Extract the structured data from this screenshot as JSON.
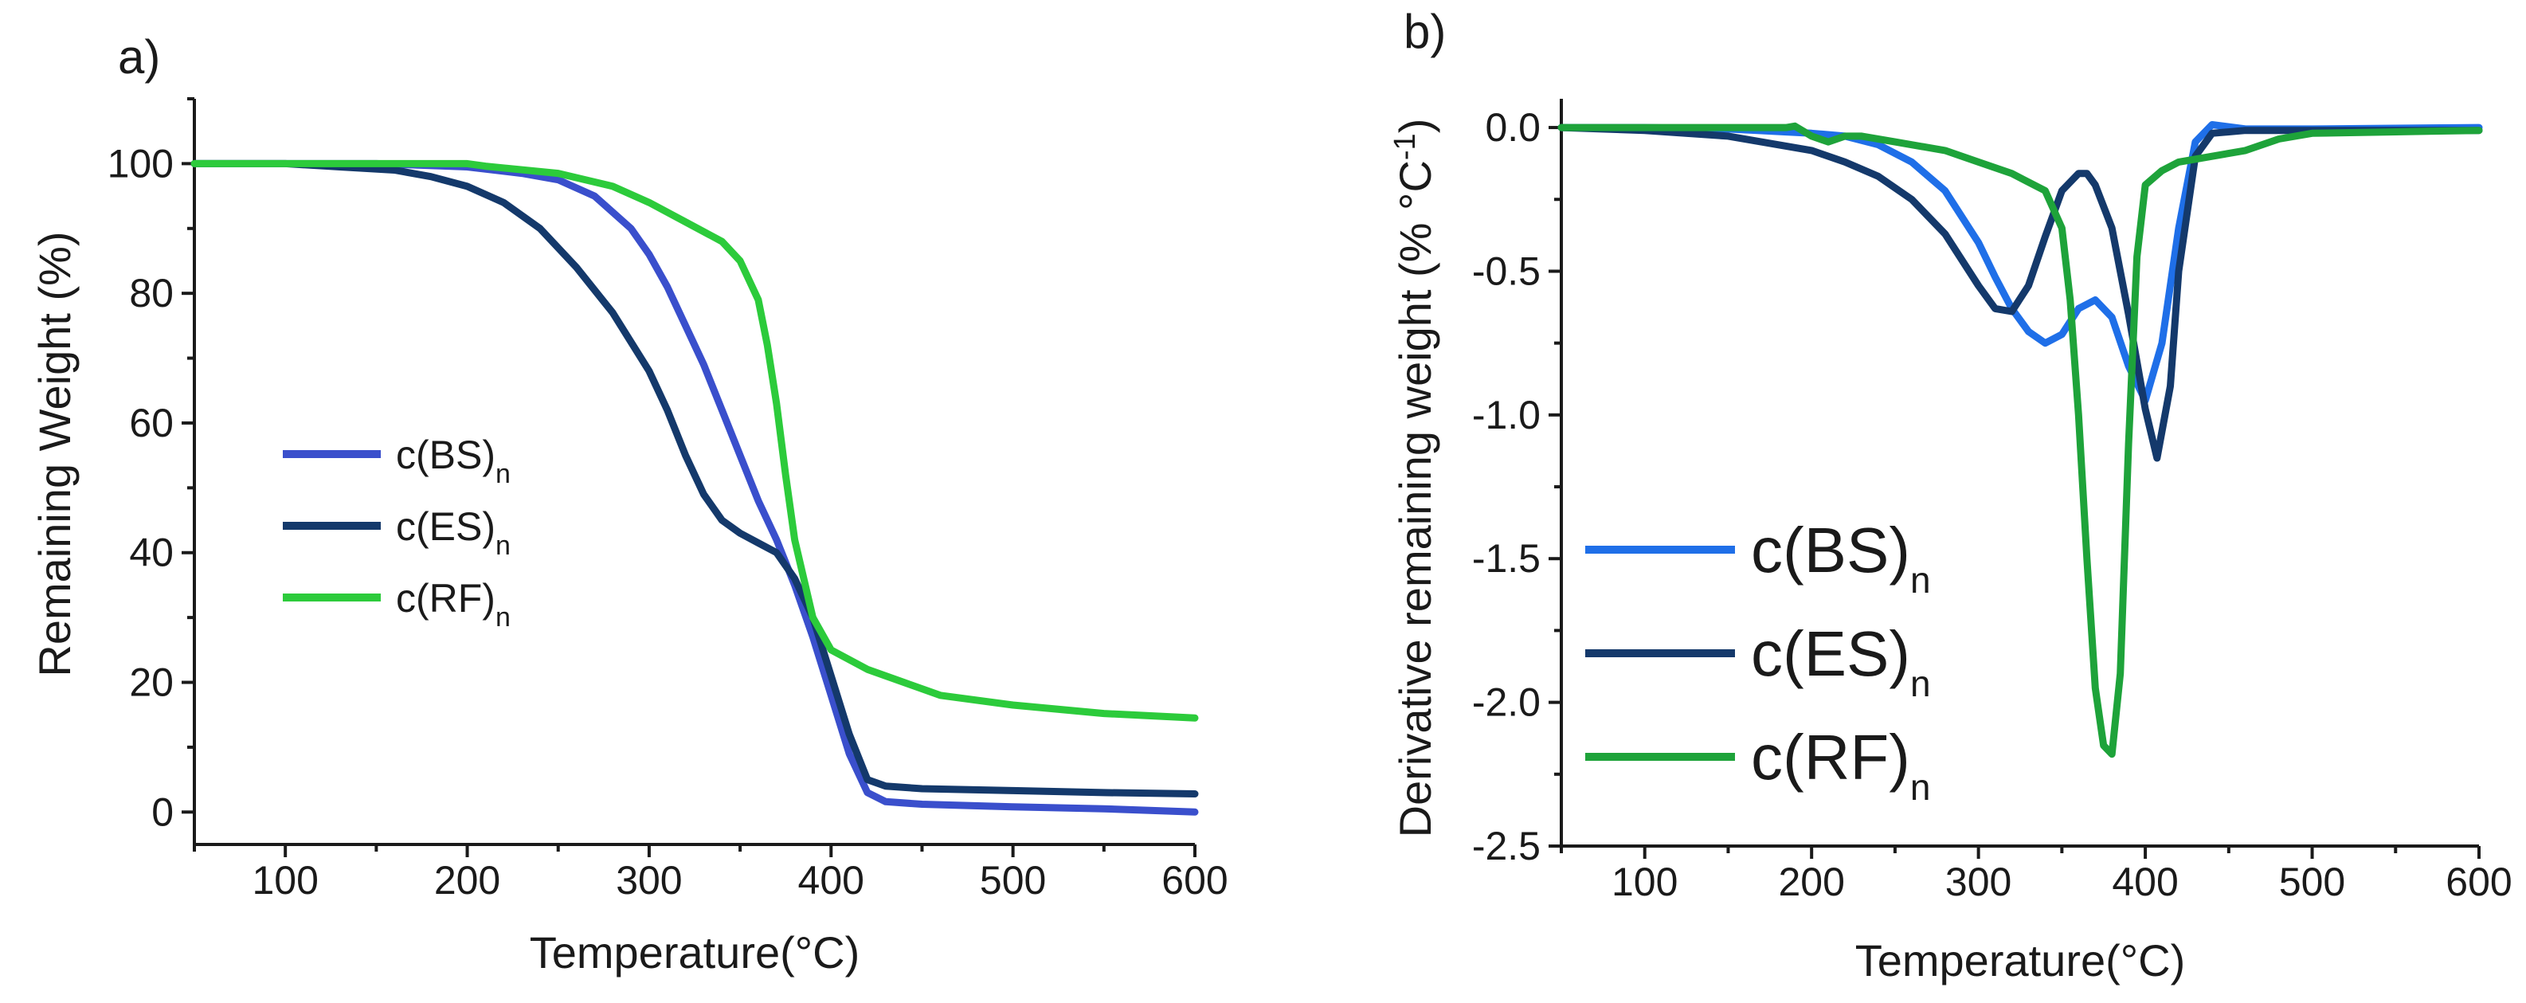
{
  "chart_data": [
    {
      "panel_label": "a)",
      "type": "line",
      "xlabel": "Temperature(°C)",
      "ylabel": "Remaining Weight (%)",
      "xlim": [
        50,
        600
      ],
      "ylim": [
        -5,
        110
      ],
      "xticks": [
        100,
        200,
        300,
        400,
        500,
        600
      ],
      "yticks": [
        0,
        20,
        40,
        60,
        80,
        100
      ],
      "grid": false,
      "legend_position": "middle-left",
      "series": [
        {
          "name": "c(BS)",
          "subscript": "n",
          "color": "#3a4fcc",
          "x": [
            50,
            100,
            150,
            200,
            230,
            250,
            270,
            290,
            300,
            310,
            320,
            330,
            340,
            350,
            360,
            370,
            380,
            390,
            400,
            410,
            420,
            430,
            450,
            500,
            550,
            600
          ],
          "y": [
            100,
            100,
            100,
            99.5,
            98.5,
            97.5,
            95,
            90,
            86,
            81,
            75,
            69,
            62,
            55,
            48,
            42,
            35,
            27,
            18,
            9,
            3,
            1.6,
            1.2,
            0.8,
            0.5,
            0
          ]
        },
        {
          "name": "c(ES)",
          "subscript": "n",
          "color": "#14396b",
          "x": [
            50,
            100,
            130,
            160,
            180,
            200,
            220,
            240,
            260,
            280,
            300,
            310,
            320,
            330,
            340,
            350,
            360,
            370,
            380,
            390,
            400,
            410,
            420,
            430,
            450,
            500,
            550,
            600
          ],
          "y": [
            100,
            100,
            99.5,
            99,
            98,
            96.5,
            94,
            90,
            84,
            77,
            68,
            62,
            55,
            49,
            45,
            43,
            41.5,
            40,
            36,
            30,
            21,
            12,
            5,
            4,
            3.6,
            3.3,
            3,
            2.8
          ]
        },
        {
          "name": "c(RF)",
          "subscript": "n",
          "color": "#2ccb3b",
          "x": [
            50,
            100,
            150,
            200,
            210,
            250,
            280,
            300,
            320,
            340,
            350,
            360,
            365,
            370,
            375,
            380,
            390,
            400,
            420,
            440,
            460,
            500,
            550,
            600
          ],
          "y": [
            100,
            100,
            100,
            100,
            99.6,
            98.5,
            96.5,
            94,
            91,
            88,
            85,
            79,
            72,
            63,
            52,
            42,
            30,
            25,
            22,
            20,
            18,
            16.5,
            15.2,
            14.5
          ]
        }
      ]
    },
    {
      "panel_label": "b)",
      "type": "line",
      "xlabel": "Temperature(°C)",
      "ylabel": "Derivative remaining weight (% °C",
      "ylabel_superscript": "-1",
      "ylabel_suffix": ")",
      "xlim": [
        50,
        600
      ],
      "ylim": [
        -2.5,
        0.1
      ],
      "xticks": [
        100,
        200,
        300,
        400,
        500,
        600
      ],
      "yticks": [
        0.0,
        -0.5,
        -1.0,
        -1.5,
        -2.0,
        -2.5
      ],
      "ytick_labels": [
        "0.0",
        "-0.5",
        "-1.0",
        "-1.5",
        "-2.0",
        "-2.5"
      ],
      "grid": false,
      "legend_position": "bottom-left",
      "series": [
        {
          "name": "c(BS)",
          "subscript": "n",
          "color": "#1f6fe8",
          "x": [
            50,
            100,
            150,
            200,
            220,
            240,
            260,
            280,
            300,
            310,
            320,
            330,
            340,
            350,
            360,
            370,
            380,
            390,
            400,
            410,
            420,
            430,
            440,
            460,
            500,
            600
          ],
          "y": [
            0,
            0,
            -0.005,
            -0.02,
            -0.03,
            -0.06,
            -0.12,
            -0.22,
            -0.4,
            -0.52,
            -0.63,
            -0.71,
            -0.75,
            -0.72,
            -0.63,
            -0.6,
            -0.66,
            -0.83,
            -0.95,
            -0.75,
            -0.35,
            -0.05,
            0.01,
            -0.005,
            -0.005,
            0
          ]
        },
        {
          "name": "c(ES)",
          "subscript": "n",
          "color": "#14396b",
          "x": [
            50,
            100,
            150,
            200,
            220,
            240,
            260,
            280,
            300,
            310,
            320,
            330,
            340,
            350,
            360,
            365,
            370,
            380,
            390,
            400,
            407,
            415,
            420,
            430,
            440,
            460,
            500,
            600
          ],
          "y": [
            0,
            -0.01,
            -0.03,
            -0.08,
            -0.12,
            -0.17,
            -0.25,
            -0.37,
            -0.55,
            -0.63,
            -0.64,
            -0.55,
            -0.38,
            -0.22,
            -0.16,
            -0.16,
            -0.2,
            -0.35,
            -0.65,
            -0.98,
            -1.15,
            -0.9,
            -0.5,
            -0.1,
            -0.02,
            -0.01,
            -0.01,
            -0.01
          ]
        },
        {
          "name": "c(RF)",
          "subscript": "n",
          "color": "#1ea33a",
          "x": [
            50,
            60,
            100,
            150,
            185,
            190,
            200,
            210,
            215,
            220,
            230,
            250,
            280,
            300,
            320,
            340,
            350,
            355,
            360,
            365,
            370,
            375,
            380,
            385,
            390,
            395,
            400,
            410,
            420,
            440,
            460,
            480,
            500,
            550,
            600
          ],
          "y": [
            0,
            0,
            0,
            0,
            0,
            0.005,
            -0.03,
            -0.05,
            -0.04,
            -0.03,
            -0.03,
            -0.05,
            -0.08,
            -0.12,
            -0.16,
            -0.22,
            -0.35,
            -0.6,
            -1.0,
            -1.5,
            -1.95,
            -2.15,
            -2.18,
            -1.9,
            -1.1,
            -0.45,
            -0.2,
            -0.15,
            -0.12,
            -0.1,
            -0.08,
            -0.04,
            -0.02,
            -0.015,
            -0.01
          ]
        }
      ]
    }
  ]
}
